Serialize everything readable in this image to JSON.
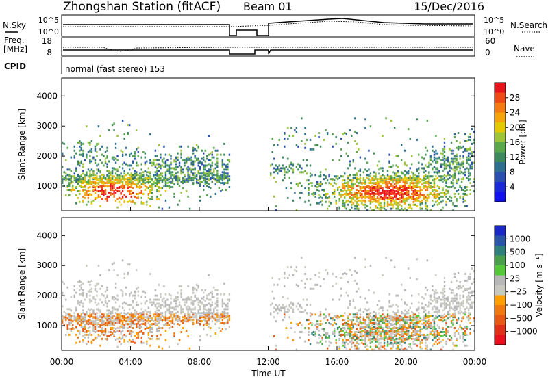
{
  "header": {
    "title": "Zhongshan Station (fitACF)",
    "beam": "Beam 01",
    "date": "15/Dec/2016"
  },
  "strip_labels": {
    "nsky": "N.Sky",
    "nsearch": "N.Search",
    "freq_line1": "Freq.",
    "freq_line2": "[MHz]",
    "nave": "Nave",
    "cpid": "CPID",
    "cpid_value": "normal (fast stereo) 153"
  },
  "strip_ticks": {
    "noise_left": [
      "10^5",
      "10^0"
    ],
    "noise_right": [
      "10^5",
      "10^0"
    ],
    "freq_left": [
      "18",
      "8"
    ],
    "nave_right": [
      "60",
      "0"
    ]
  },
  "chart_data": [
    {
      "type": "heatmap",
      "name": "power-panel",
      "xlabel": "",
      "ylabel": "Slant Range [km]",
      "x_range_hours": [
        0,
        24
      ],
      "ylim": [
        180,
        4600
      ],
      "yticks": [
        1000,
        2000,
        3000,
        4000
      ],
      "colorbar": {
        "label": "Power [dB]",
        "ticks": [
          "28",
          "24",
          "20",
          "16",
          "12",
          "8",
          "4"
        ],
        "colors": [
          "#e8141c",
          "#f04a16",
          "#f57a12",
          "#f5a50a",
          "#e4c800",
          "#9ec43a",
          "#5aa84b",
          "#3e8a5c",
          "#2e6f8f",
          "#2a4fb0",
          "#1a2ad8",
          "#1212f0"
        ]
      }
    },
    {
      "type": "heatmap",
      "name": "velocity-panel",
      "xlabel": "Time UT",
      "ylabel": "Slant Range [km]",
      "x_range_hours": [
        0,
        24
      ],
      "ylim": [
        180,
        4600
      ],
      "yticks": [
        1000,
        2000,
        3000,
        4000
      ],
      "xticks": [
        "00:00",
        "04:00",
        "08:00",
        "12:00",
        "16:00",
        "20:00",
        "00:00"
      ],
      "colorbar": {
        "label": "Velocity [m s⁻¹]",
        "ticks": [
          "1000",
          "500",
          "100",
          "25",
          "−25",
          "−100",
          "−500",
          "−1000"
        ],
        "colors": [
          "#1a28c8",
          "#2a55a8",
          "#2f7f7a",
          "#4aa04a",
          "#54c838",
          "#b8b8b8",
          "#c8c8c0",
          "#ffa000",
          "#f07a10",
          "#e85a14",
          "#e03018",
          "#e8101c"
        ]
      }
    }
  ]
}
